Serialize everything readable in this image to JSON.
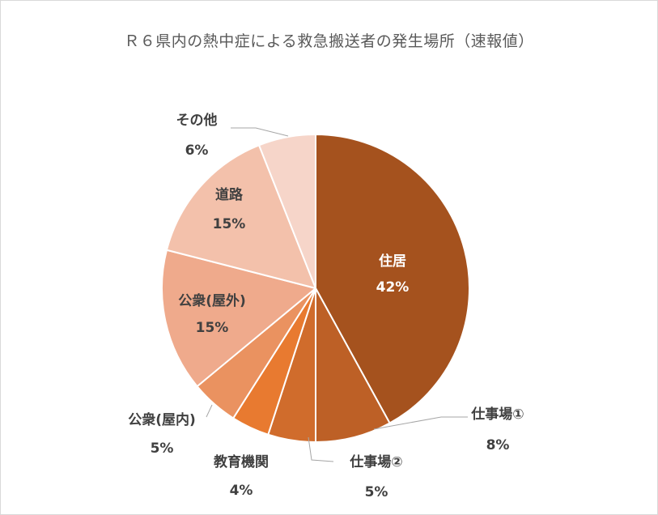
{
  "chart_data": {
    "type": "pie",
    "title": "Ｒ６県内の熱中症による救急搬送者の発生場所（速報値）",
    "slices": [
      {
        "label": "住居",
        "value": 42,
        "percent_label": "42%",
        "color": "#A5521E"
      },
      {
        "label": "仕事場①",
        "value": 8,
        "percent_label": "8%",
        "color": "#BD6026"
      },
      {
        "label": "仕事場②",
        "value": 5,
        "percent_label": "5%",
        "color": "#D06C2C"
      },
      {
        "label": "教育機関",
        "value": 4,
        "percent_label": "4%",
        "color": "#E87A30"
      },
      {
        "label": "公衆(屋内)",
        "value": 5,
        "percent_label": "5%",
        "color": "#EA9260"
      },
      {
        "label": "公衆(屋外)",
        "value": 15,
        "percent_label": "15%",
        "color": "#EFAA8C"
      },
      {
        "label": "道路",
        "value": 15,
        "percent_label": "15%",
        "color": "#F3C1AB"
      },
      {
        "label": "その他",
        "value": 6,
        "percent_label": "6%",
        "color": "#F6D5C9"
      }
    ],
    "legend": "none"
  }
}
